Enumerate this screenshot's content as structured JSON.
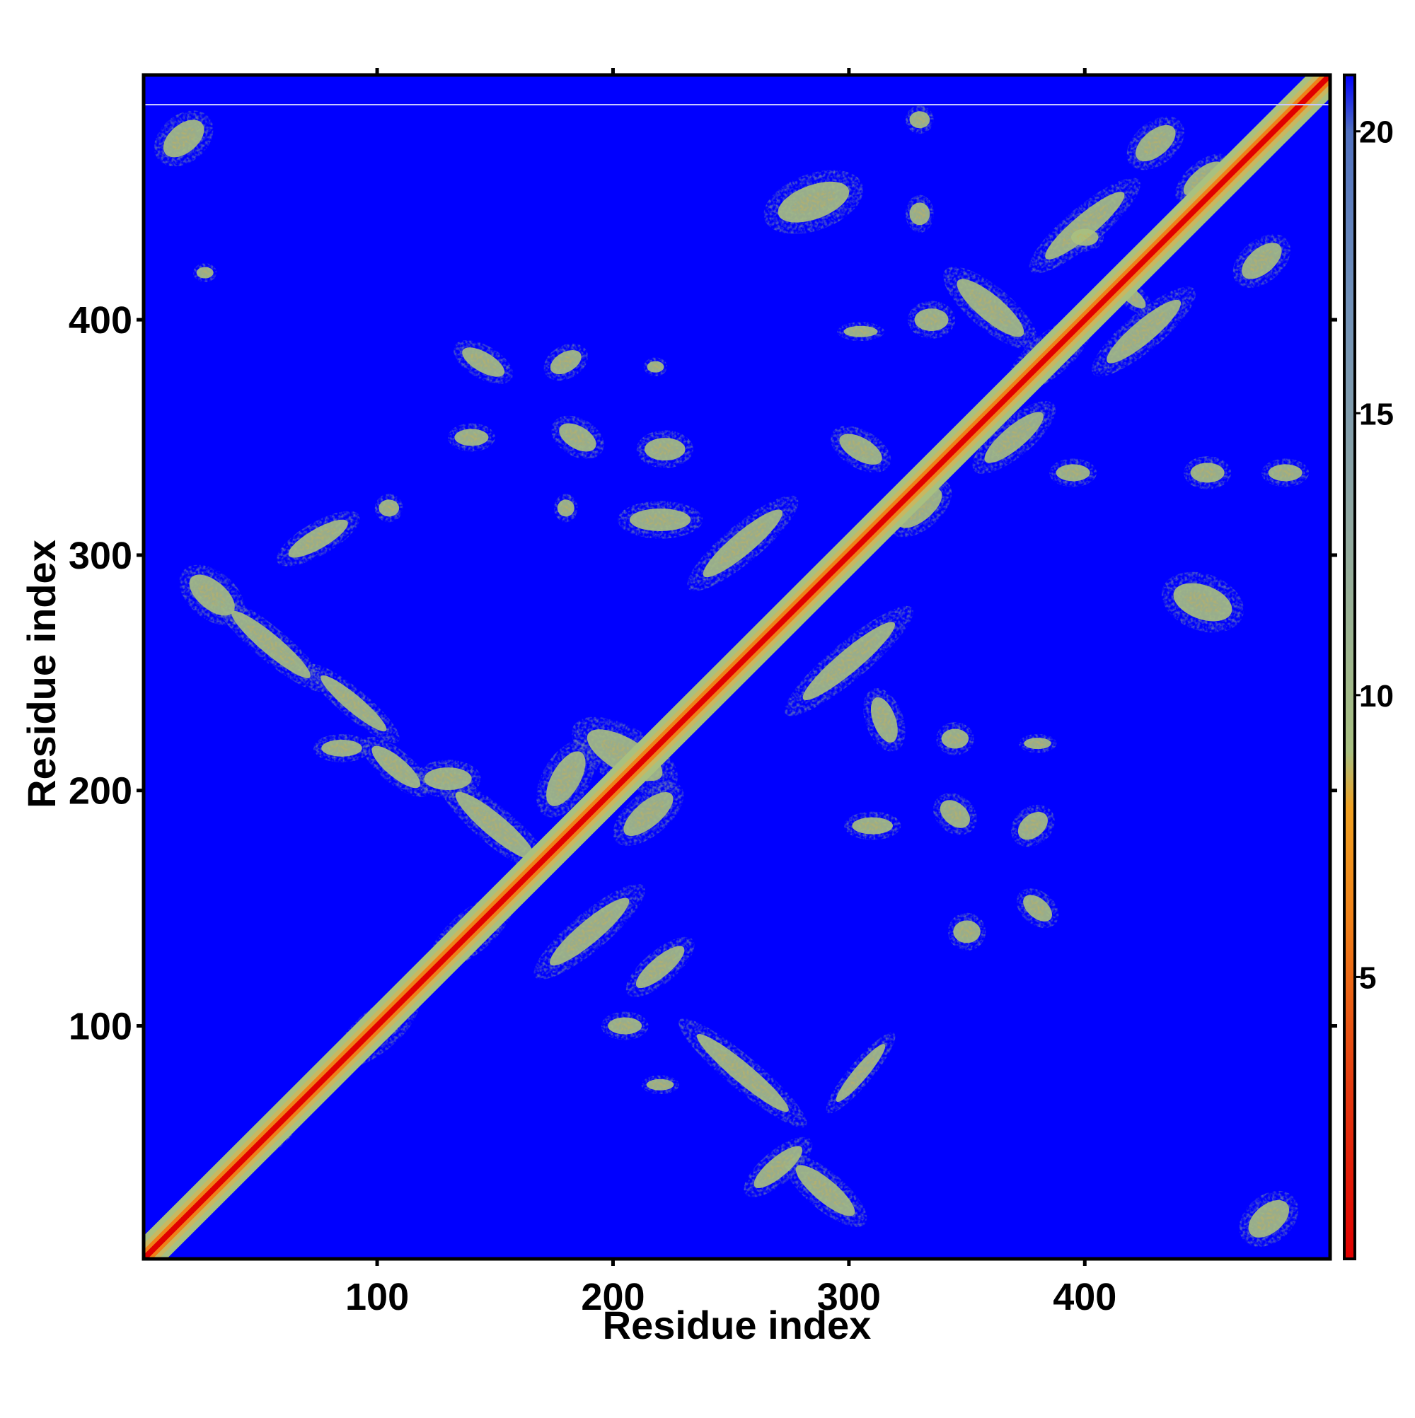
{
  "chart_data": {
    "type": "heatmap",
    "xlabel": "Residue index",
    "ylabel": "Residue index",
    "x_range": [
      1,
      504
    ],
    "y_range": [
      1,
      504
    ],
    "x_ticks": [
      100,
      200,
      300,
      400
    ],
    "y_ticks": [
      100,
      200,
      300,
      400
    ],
    "colorbar": {
      "range": [
        0,
        21
      ],
      "ticks": [
        5,
        10,
        15,
        20
      ],
      "stops": [
        {
          "value": 0,
          "color": "#e00000"
        },
        {
          "value": 3,
          "color": "#e43a10"
        },
        {
          "value": 6,
          "color": "#f08018"
        },
        {
          "value": 8,
          "color": "#f0a020"
        },
        {
          "value": 9,
          "color": "#a8c080"
        },
        {
          "value": 13,
          "color": "#90a8a0"
        },
        {
          "value": 17,
          "color": "#7090b8"
        },
        {
          "value": 20,
          "color": "#5070c0"
        },
        {
          "value": 21,
          "color": "#0000ff"
        }
      ]
    },
    "background_color": "#0000ff",
    "diagonal": {
      "core_color": "#e00000",
      "halo_color": "#f08018",
      "outer_color": "#a8c080"
    },
    "contact_regions": [
      {
        "x": 18,
        "y": 477,
        "rx": 14,
        "ry": 10,
        "angle": -40
      },
      {
        "x": 478,
        "y": 18,
        "rx": 14,
        "ry": 10,
        "angle": -40
      },
      {
        "x": 27,
        "y": 420,
        "rx": 5,
        "ry": 4,
        "angle": 0
      },
      {
        "x": 55,
        "y": 53,
        "rx": 14,
        "ry": 6,
        "angle": -40
      },
      {
        "x": 100,
        "y": 98,
        "rx": 22,
        "ry": 9,
        "angle": -40
      },
      {
        "x": 140,
        "y": 140,
        "rx": 22,
        "ry": 9,
        "angle": -40
      },
      {
        "x": 30,
        "y": 283,
        "rx": 16,
        "ry": 10,
        "angle": 40
      },
      {
        "x": 55,
        "y": 262,
        "rx": 30,
        "ry": 7,
        "angle": 40
      },
      {
        "x": 90,
        "y": 237,
        "rx": 25,
        "ry": 6,
        "angle": 40
      },
      {
        "x": 108,
        "y": 210,
        "rx": 18,
        "ry": 7,
        "angle": 40
      },
      {
        "x": 85,
        "y": 218,
        "rx": 12,
        "ry": 6,
        "angle": 0
      },
      {
        "x": 75,
        "y": 307,
        "rx": 20,
        "ry": 7,
        "angle": -30
      },
      {
        "x": 130,
        "y": 205,
        "rx": 14,
        "ry": 8,
        "angle": 0
      },
      {
        "x": 150,
        "y": 185,
        "rx": 30,
        "ry": 8,
        "angle": 40
      },
      {
        "x": 180,
        "y": 205,
        "rx": 18,
        "ry": 10,
        "angle": -60
      },
      {
        "x": 205,
        "y": 215,
        "rx": 25,
        "ry": 12,
        "angle": 30
      },
      {
        "x": 215,
        "y": 190,
        "rx": 18,
        "ry": 9,
        "angle": -40
      },
      {
        "x": 190,
        "y": 140,
        "rx": 30,
        "ry": 8,
        "angle": -40
      },
      {
        "x": 205,
        "y": 100,
        "rx": 10,
        "ry": 6,
        "angle": 0
      },
      {
        "x": 220,
        "y": 125,
        "rx": 18,
        "ry": 7,
        "angle": -40
      },
      {
        "x": 255,
        "y": 80,
        "rx": 35,
        "ry": 7,
        "angle": 40
      },
      {
        "x": 290,
        "y": 30,
        "rx": 22,
        "ry": 8,
        "angle": 40
      },
      {
        "x": 270,
        "y": 40,
        "rx": 18,
        "ry": 7,
        "angle": -40
      },
      {
        "x": 305,
        "y": 80,
        "rx": 22,
        "ry": 5,
        "angle": -50
      },
      {
        "x": 220,
        "y": 315,
        "rx": 18,
        "ry": 8,
        "angle": 0
      },
      {
        "x": 255,
        "y": 305,
        "rx": 30,
        "ry": 8,
        "angle": -40
      },
      {
        "x": 300,
        "y": 255,
        "rx": 35,
        "ry": 8,
        "angle": -40
      },
      {
        "x": 315,
        "y": 230,
        "rx": 14,
        "ry": 8,
        "angle": 70
      },
      {
        "x": 305,
        "y": 345,
        "rx": 14,
        "ry": 8,
        "angle": 30
      },
      {
        "x": 330,
        "y": 320,
        "rx": 16,
        "ry": 9,
        "angle": -40
      },
      {
        "x": 145,
        "y": 382,
        "rx": 14,
        "ry": 7,
        "angle": 30
      },
      {
        "x": 180,
        "y": 382,
        "rx": 10,
        "ry": 7,
        "angle": -30
      },
      {
        "x": 218,
        "y": 380,
        "rx": 5,
        "ry": 4,
        "angle": 0
      },
      {
        "x": 140,
        "y": 350,
        "rx": 10,
        "ry": 6,
        "angle": 0
      },
      {
        "x": 185,
        "y": 350,
        "rx": 12,
        "ry": 8,
        "angle": 30
      },
      {
        "x": 222,
        "y": 345,
        "rx": 12,
        "ry": 8,
        "angle": 0
      },
      {
        "x": 180,
        "y": 320,
        "rx": 5,
        "ry": 6,
        "angle": 0
      },
      {
        "x": 105,
        "y": 320,
        "rx": 6,
        "ry": 6,
        "angle": 0
      },
      {
        "x": 285,
        "y": 450,
        "rx": 22,
        "ry": 12,
        "angle": -20
      },
      {
        "x": 330,
        "y": 485,
        "rx": 6,
        "ry": 6,
        "angle": 0
      },
      {
        "x": 330,
        "y": 445,
        "rx": 6,
        "ry": 8,
        "angle": 0
      },
      {
        "x": 335,
        "y": 400,
        "rx": 10,
        "ry": 8,
        "angle": 0
      },
      {
        "x": 305,
        "y": 395,
        "rx": 10,
        "ry": 4,
        "angle": 0
      },
      {
        "x": 360,
        "y": 405,
        "rx": 25,
        "ry": 9,
        "angle": 40
      },
      {
        "x": 385,
        "y": 385,
        "rx": 22,
        "ry": 9,
        "angle": -40
      },
      {
        "x": 370,
        "y": 350,
        "rx": 22,
        "ry": 8,
        "angle": -40
      },
      {
        "x": 395,
        "y": 335,
        "rx": 10,
        "ry": 6,
        "angle": 0
      },
      {
        "x": 425,
        "y": 395,
        "rx": 28,
        "ry": 8,
        "angle": -40
      },
      {
        "x": 400,
        "y": 440,
        "rx": 30,
        "ry": 8,
        "angle": -40
      },
      {
        "x": 430,
        "y": 475,
        "rx": 14,
        "ry": 9,
        "angle": -40
      },
      {
        "x": 475,
        "y": 425,
        "rx": 14,
        "ry": 9,
        "angle": -40
      },
      {
        "x": 450,
        "y": 460,
        "rx": 14,
        "ry": 7,
        "angle": -40
      },
      {
        "x": 452,
        "y": 335,
        "rx": 10,
        "ry": 7,
        "angle": 0
      },
      {
        "x": 485,
        "y": 335,
        "rx": 10,
        "ry": 6,
        "angle": 0
      },
      {
        "x": 450,
        "y": 280,
        "rx": 18,
        "ry": 12,
        "angle": 20
      },
      {
        "x": 345,
        "y": 222,
        "rx": 8,
        "ry": 7,
        "angle": 0
      },
      {
        "x": 380,
        "y": 220,
        "rx": 8,
        "ry": 4,
        "angle": 0
      },
      {
        "x": 345,
        "y": 190,
        "rx": 10,
        "ry": 8,
        "angle": 40
      },
      {
        "x": 378,
        "y": 185,
        "rx": 10,
        "ry": 8,
        "angle": -40
      },
      {
        "x": 380,
        "y": 150,
        "rx": 10,
        "ry": 7,
        "angle": 40
      },
      {
        "x": 350,
        "y": 140,
        "rx": 8,
        "ry": 8,
        "angle": 0
      },
      {
        "x": 310,
        "y": 185,
        "rx": 12,
        "ry": 6,
        "angle": 0
      },
      {
        "x": 400,
        "y": 435,
        "rx": 8,
        "ry": 6,
        "angle": 0
      },
      {
        "x": 420,
        "y": 410,
        "rx": 10,
        "ry": 5,
        "angle": 40
      },
      {
        "x": 220,
        "y": 75,
        "rx": 8,
        "ry": 4,
        "angle": 0
      }
    ]
  }
}
